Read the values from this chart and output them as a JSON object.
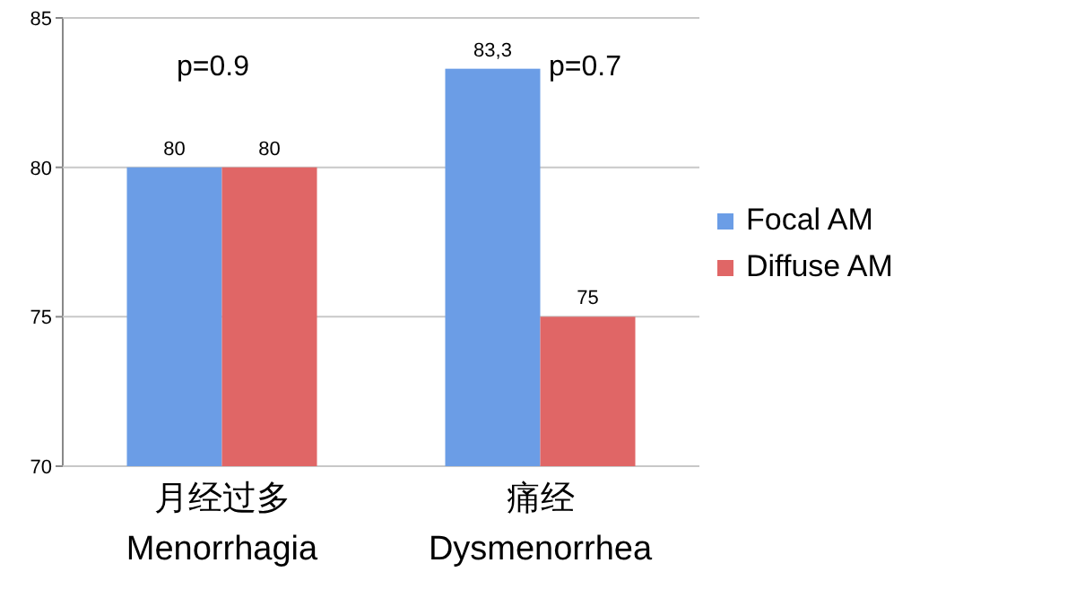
{
  "chart_data": {
    "type": "bar",
    "categories": [
      "月经过多\nMenorrhagia",
      "痛经\nDysmenorrhea"
    ],
    "series": [
      {
        "name": "Focal AM",
        "color": "#6b9de6",
        "values": [
          80,
          83.3
        ],
        "value_labels": [
          "80",
          "83,3"
        ]
      },
      {
        "name": "Diffuse AM",
        "color": "#e06666",
        "values": [
          80,
          75
        ],
        "value_labels": [
          "80",
          "75"
        ]
      }
    ],
    "ylim": [
      70,
      85
    ],
    "yticks": [
      70,
      75,
      80,
      85
    ],
    "grid": "y",
    "legend": "right",
    "annotations": [
      "p=0.9",
      "p=0.7"
    ]
  }
}
